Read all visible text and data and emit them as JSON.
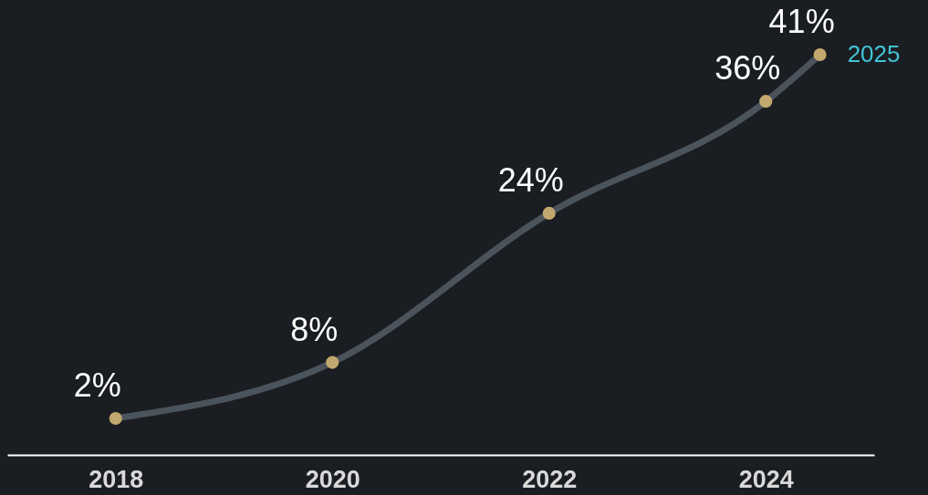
{
  "chart_data": {
    "type": "line",
    "x": [
      2018,
      2020,
      2022,
      2024,
      2024.5
    ],
    "series": [
      {
        "color": "#4b535c",
        "values": [
          2,
          8,
          24,
          36,
          41
        ],
        "value_labels": [
          "2%",
          "8%",
          "24%",
          "36%",
          "41%"
        ]
      }
    ],
    "xlim": [
      2017,
      2025
    ],
    "xticks": [
      2018,
      2020,
      2022,
      2024
    ],
    "tick_labels": "x",
    "grid": false,
    "marker": "circle",
    "line_style": "solid",
    "annotations": [
      {
        "text": "2025",
        "x": 2024.5,
        "y": 41
      }
    ]
  }
}
